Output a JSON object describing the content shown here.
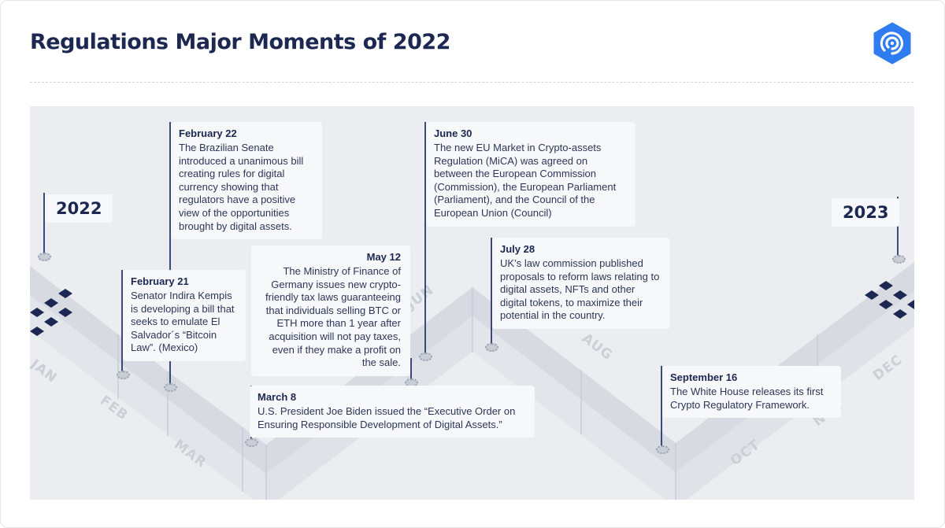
{
  "header": {
    "title": "Regulations Major Moments of 2022"
  },
  "brand": {
    "logo_icon": "hexagon-radar-logo",
    "accent_color": "#2f7bf0",
    "navy_color": "#1c2752"
  },
  "timeline": {
    "start_year": "2022",
    "end_year": "2023",
    "months": [
      "JAN",
      "FEB",
      "MAR",
      "JUN",
      "AUG",
      "OCT",
      "NOV",
      "DEC"
    ],
    "events": [
      {
        "date": "February 22",
        "text": "The Brazilian Senate introduced a unanimous bill creating rules for digital currency showing that regulators have a positive view of the opportunities brought by digital assets."
      },
      {
        "date": "February 21",
        "text": "Senator Indira Kempis is developing a bill that seeks to emulate El Salvador´s “Bitcoin Law”. (Mexico)"
      },
      {
        "date": "May 12",
        "text": "The Ministry of Finance of Germany issues new crypto-friendly tax laws guaranteeing that individuals selling BTC or ETH more than 1 year after acquisition will not pay taxes, even if they make a profit on the sale."
      },
      {
        "date": "March 8",
        "text": "U.S. President Joe Biden issued the “Executive Order on Ensuring Responsible Development of Digital Assets.”"
      },
      {
        "date": "June 30",
        "text": "The new EU Market in Crypto-assets Regulation (MiCA) was agreed on between the European Commission (Commission), the European Parliament (Parliament), and the Council of the European Union (Council)"
      },
      {
        "date": "July 28",
        "text": "UK’s law commission published proposals to reform laws relating to digital assets, NFTs and other digital tokens, to maximize their potential in the country."
      },
      {
        "date": "September 16",
        "text": "The White House releases its first Crypto Regulatory Framework."
      }
    ]
  }
}
